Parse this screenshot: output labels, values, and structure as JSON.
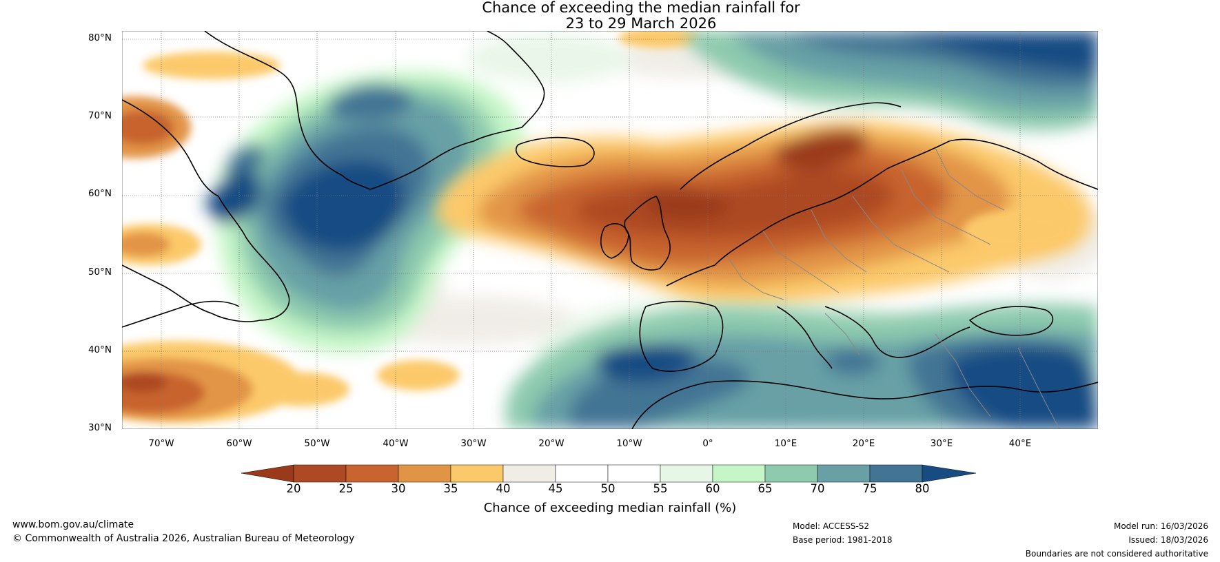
{
  "title": {
    "line1": "Chance of exceeding the median rainfall for",
    "line2": "23 to 29 March 2026"
  },
  "axes": {
    "lat_labels": [
      "80°N",
      "70°N",
      "60°N",
      "50°N",
      "40°N",
      "30°N"
    ],
    "lon_labels": [
      "70°W",
      "60°W",
      "50°W",
      "40°W",
      "30°W",
      "20°W",
      "10°W",
      "0°",
      "10°E",
      "20°E",
      "30°E",
      "40°E"
    ],
    "lat_range": [
      30,
      81
    ],
    "lon_range": [
      -75,
      50
    ]
  },
  "colorbar": {
    "ticks": [
      "20",
      "25",
      "30",
      "35",
      "40",
      "45",
      "50",
      "55",
      "60",
      "65",
      "70",
      "75",
      "80"
    ],
    "colors": [
      "#9a3a1b",
      "#ad4a24",
      "#c8642f",
      "#e29446",
      "#fcc96a",
      "#f0ece6",
      "#ffffff",
      "#ffffff",
      "#e8f6e8",
      "#c6f6c7",
      "#8dcaae",
      "#68a0a6",
      "#427494",
      "#174c83"
    ],
    "label": "Chance of exceeding median rainfall (%)"
  },
  "footer": {
    "website": "www.bom.gov.au/climate",
    "copyright": "© Commonwealth of Australia 2026, Australian Bureau of Meteorology",
    "model": "Model: ACCESS-S2",
    "base_period": "Base period: 1981-2018",
    "model_run": "Model run: 16/03/2026",
    "issued": "Issued: 18/03/2026",
    "disclaimer": "Boundaries are not considered authoritative"
  }
}
